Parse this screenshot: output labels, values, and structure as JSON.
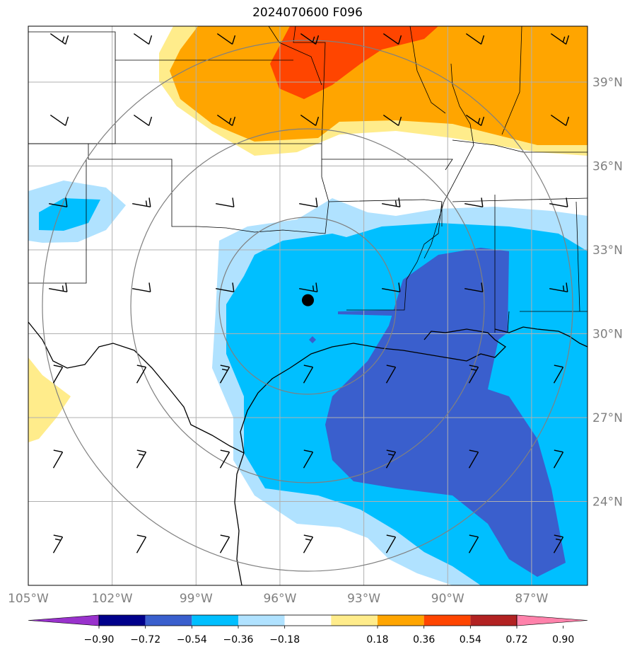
{
  "title": "2024070600 F096",
  "map": {
    "lon_range": [
      -105,
      -85
    ],
    "lat_range": [
      21,
      41
    ],
    "lon_ticks": [
      "105°W",
      "102°W",
      "99°W",
      "96°W",
      "93°W",
      "90°W",
      "87°W"
    ],
    "lat_ticks": [
      "24°N",
      "27°N",
      "30°N",
      "33°N",
      "36°N",
      "39°N"
    ],
    "station_marker": {
      "lon": -95.0,
      "lat": 31.2,
      "kind": "filled-circle"
    },
    "range_rings": "concentric gray circles centered on station",
    "wind_barbs": "regular grid of wind barbs",
    "colors": {
      "gridline": "#b0b0b0",
      "ring": "#808080",
      "coast": "#000000",
      "axis_label": "#808080"
    }
  },
  "colorbar": {
    "tick_labels": [
      "−0.90",
      "−0.72",
      "−0.54",
      "−0.36",
      "−0.18",
      "0.18",
      "0.36",
      "0.54",
      "0.72",
      "0.90"
    ],
    "colors": [
      "#9932cc",
      "#00008b",
      "#3a5fcd",
      "#00bfff",
      "#b0e2ff",
      "#ffffff",
      "#ffec8b",
      "#ffa500",
      "#ff4500",
      "#b22222",
      "#ff82ab"
    ]
  }
}
